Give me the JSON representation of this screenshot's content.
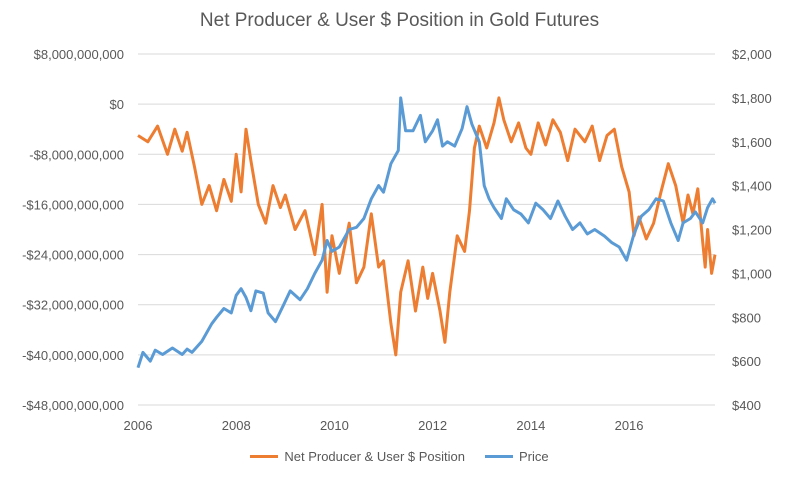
{
  "chart_data": {
    "type": "line",
    "title": "Net Producer & User $ Position in Gold Futures",
    "x_ticks": [
      "2006",
      "2008",
      "2010",
      "2012",
      "2014",
      "2016"
    ],
    "xlim": [
      2006,
      2017.75
    ],
    "y_left": {
      "ticks": [
        8000000000,
        0,
        -8000000000,
        -16000000000,
        -24000000000,
        -32000000000,
        -40000000000,
        -48000000000
      ],
      "tick_labels": [
        "$8,000,000,000",
        "$0",
        "-$8,000,000,000",
        "-$16,000,000,000",
        "-$24,000,000,000",
        "-$32,000,000,000",
        "-$40,000,000,000",
        "-$48,000,000,000"
      ],
      "ylim": [
        -48000000000,
        8000000000
      ]
    },
    "y_right": {
      "ticks": [
        2000,
        1800,
        1600,
        1400,
        1200,
        1000,
        800,
        600,
        400
      ],
      "tick_labels": [
        "$2,000",
        "$1,800",
        "$1,600",
        "$1,400",
        "$1,200",
        "$1,000",
        "$800",
        "$600",
        "$400"
      ],
      "ylim": [
        400,
        2000
      ]
    },
    "grid": "horizontal",
    "legend_position": "bottom",
    "series": [
      {
        "name": "Net Producer & User $ Position",
        "axis": "left",
        "color": "#ED7D31",
        "points": [
          [
            2006.0,
            -5000000000
          ],
          [
            2006.2,
            -6000000000
          ],
          [
            2006.4,
            -3500000000
          ],
          [
            2006.6,
            -8000000000
          ],
          [
            2006.75,
            -4000000000
          ],
          [
            2006.9,
            -7500000000
          ],
          [
            2007.0,
            -4500000000
          ],
          [
            2007.15,
            -10000000000
          ],
          [
            2007.3,
            -16000000000
          ],
          [
            2007.45,
            -13000000000
          ],
          [
            2007.6,
            -17000000000
          ],
          [
            2007.75,
            -12000000000
          ],
          [
            2007.9,
            -15500000000
          ],
          [
            2008.0,
            -8000000000
          ],
          [
            2008.1,
            -14000000000
          ],
          [
            2008.2,
            -4000000000
          ],
          [
            2008.3,
            -9000000000
          ],
          [
            2008.45,
            -16000000000
          ],
          [
            2008.6,
            -19000000000
          ],
          [
            2008.75,
            -13000000000
          ],
          [
            2008.9,
            -16500000000
          ],
          [
            2009.0,
            -14500000000
          ],
          [
            2009.2,
            -20000000000
          ],
          [
            2009.4,
            -17000000000
          ],
          [
            2009.6,
            -24000000000
          ],
          [
            2009.75,
            -16000000000
          ],
          [
            2009.85,
            -30000000000
          ],
          [
            2009.95,
            -21000000000
          ],
          [
            2010.1,
            -27000000000
          ],
          [
            2010.3,
            -19000000000
          ],
          [
            2010.45,
            -28500000000
          ],
          [
            2010.6,
            -26000000000
          ],
          [
            2010.75,
            -17500000000
          ],
          [
            2010.9,
            -26000000000
          ],
          [
            2011.0,
            -25000000000
          ],
          [
            2011.15,
            -35000000000
          ],
          [
            2011.25,
            -40000000000
          ],
          [
            2011.35,
            -30000000000
          ],
          [
            2011.5,
            -25000000000
          ],
          [
            2011.65,
            -33000000000
          ],
          [
            2011.8,
            -26000000000
          ],
          [
            2011.9,
            -31000000000
          ],
          [
            2012.0,
            -27000000000
          ],
          [
            2012.15,
            -33000000000
          ],
          [
            2012.25,
            -38000000000
          ],
          [
            2012.35,
            -30000000000
          ],
          [
            2012.5,
            -21000000000
          ],
          [
            2012.65,
            -23500000000
          ],
          [
            2012.75,
            -17000000000
          ],
          [
            2012.85,
            -7000000000
          ],
          [
            2012.95,
            -3500000000
          ],
          [
            2013.1,
            -7000000000
          ],
          [
            2013.25,
            -3000000000
          ],
          [
            2013.35,
            1000000000
          ],
          [
            2013.45,
            -2500000000
          ],
          [
            2013.6,
            -6000000000
          ],
          [
            2013.75,
            -3000000000
          ],
          [
            2013.9,
            -7000000000
          ],
          [
            2014.0,
            -8000000000
          ],
          [
            2014.15,
            -3000000000
          ],
          [
            2014.3,
            -6500000000
          ],
          [
            2014.45,
            -2500000000
          ],
          [
            2014.6,
            -4500000000
          ],
          [
            2014.75,
            -9000000000
          ],
          [
            2014.9,
            -4000000000
          ],
          [
            2015.1,
            -6000000000
          ],
          [
            2015.25,
            -3500000000
          ],
          [
            2015.4,
            -9000000000
          ],
          [
            2015.55,
            -5000000000
          ],
          [
            2015.7,
            -4000000000
          ],
          [
            2015.85,
            -10000000000
          ],
          [
            2016.0,
            -14000000000
          ],
          [
            2016.1,
            -21000000000
          ],
          [
            2016.2,
            -18000000000
          ],
          [
            2016.35,
            -21500000000
          ],
          [
            2016.5,
            -19000000000
          ],
          [
            2016.65,
            -14000000000
          ],
          [
            2016.8,
            -9500000000
          ],
          [
            2016.95,
            -13000000000
          ],
          [
            2017.1,
            -19000000000
          ],
          [
            2017.2,
            -14500000000
          ],
          [
            2017.3,
            -17500000000
          ],
          [
            2017.4,
            -13500000000
          ],
          [
            2017.5,
            -22000000000
          ],
          [
            2017.55,
            -26000000000
          ],
          [
            2017.6,
            -20000000000
          ],
          [
            2017.68,
            -27000000000
          ],
          [
            2017.75,
            -24000000000
          ]
        ]
      },
      {
        "name": "Price",
        "axis": "right",
        "color": "#5B9BD5",
        "points": [
          [
            2006.0,
            570
          ],
          [
            2006.1,
            640
          ],
          [
            2006.25,
            600
          ],
          [
            2006.35,
            650
          ],
          [
            2006.5,
            630
          ],
          [
            2006.7,
            660
          ],
          [
            2006.9,
            630
          ],
          [
            2007.0,
            655
          ],
          [
            2007.1,
            640
          ],
          [
            2007.3,
            690
          ],
          [
            2007.5,
            770
          ],
          [
            2007.6,
            800
          ],
          [
            2007.75,
            840
          ],
          [
            2007.9,
            820
          ],
          [
            2008.0,
            900
          ],
          [
            2008.1,
            930
          ],
          [
            2008.2,
            890
          ],
          [
            2008.3,
            830
          ],
          [
            2008.4,
            920
          ],
          [
            2008.55,
            910
          ],
          [
            2008.65,
            820
          ],
          [
            2008.8,
            780
          ],
          [
            2008.95,
            850
          ],
          [
            2009.1,
            920
          ],
          [
            2009.3,
            880
          ],
          [
            2009.45,
            930
          ],
          [
            2009.6,
            1000
          ],
          [
            2009.75,
            1060
          ],
          [
            2009.85,
            1150
          ],
          [
            2009.95,
            1100
          ],
          [
            2010.1,
            1120
          ],
          [
            2010.3,
            1200
          ],
          [
            2010.45,
            1210
          ],
          [
            2010.6,
            1250
          ],
          [
            2010.75,
            1340
          ],
          [
            2010.9,
            1400
          ],
          [
            2011.0,
            1370
          ],
          [
            2011.15,
            1500
          ],
          [
            2011.3,
            1560
          ],
          [
            2011.35,
            1800
          ],
          [
            2011.45,
            1650
          ],
          [
            2011.6,
            1650
          ],
          [
            2011.75,
            1720
          ],
          [
            2011.85,
            1600
          ],
          [
            2012.0,
            1650
          ],
          [
            2012.1,
            1700
          ],
          [
            2012.2,
            1580
          ],
          [
            2012.3,
            1600
          ],
          [
            2012.45,
            1580
          ],
          [
            2012.6,
            1660
          ],
          [
            2012.7,
            1760
          ],
          [
            2012.8,
            1680
          ],
          [
            2012.95,
            1600
          ],
          [
            2013.05,
            1400
          ],
          [
            2013.15,
            1340
          ],
          [
            2013.25,
            1300
          ],
          [
            2013.4,
            1250
          ],
          [
            2013.5,
            1340
          ],
          [
            2013.65,
            1290
          ],
          [
            2013.8,
            1270
          ],
          [
            2013.95,
            1230
          ],
          [
            2014.1,
            1320
          ],
          [
            2014.25,
            1290
          ],
          [
            2014.4,
            1250
          ],
          [
            2014.55,
            1330
          ],
          [
            2014.7,
            1260
          ],
          [
            2014.85,
            1200
          ],
          [
            2015.0,
            1230
          ],
          [
            2015.15,
            1180
          ],
          [
            2015.3,
            1200
          ],
          [
            2015.5,
            1170
          ],
          [
            2015.65,
            1140
          ],
          [
            2015.8,
            1120
          ],
          [
            2015.95,
            1060
          ],
          [
            2016.1,
            1180
          ],
          [
            2016.25,
            1260
          ],
          [
            2016.4,
            1290
          ],
          [
            2016.55,
            1340
          ],
          [
            2016.7,
            1330
          ],
          [
            2016.85,
            1230
          ],
          [
            2017.0,
            1150
          ],
          [
            2017.1,
            1230
          ],
          [
            2017.25,
            1250
          ],
          [
            2017.35,
            1280
          ],
          [
            2017.5,
            1230
          ],
          [
            2017.6,
            1300
          ],
          [
            2017.7,
            1340
          ],
          [
            2017.75,
            1320
          ]
        ]
      }
    ]
  }
}
